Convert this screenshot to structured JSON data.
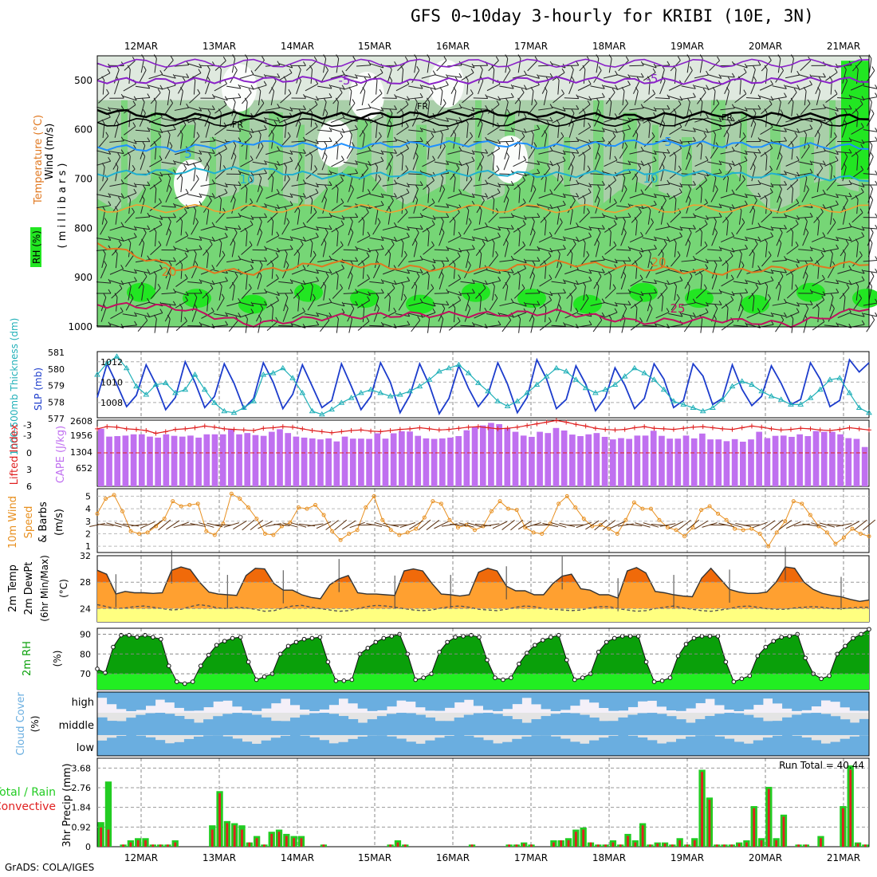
{
  "title": "GFS 0~10day 3-hourly for KRIBI (10E, 3N)",
  "footer": "GrADS: COLA/IGES",
  "dates": [
    "12MAR",
    "13MAR",
    "14MAR",
    "15MAR",
    "16MAR",
    "17MAR",
    "18MAR",
    "19MAR",
    "20MAR",
    "21MAR"
  ],
  "colors": {
    "rh_light": "#dfe9df",
    "rh_mid": "#a9cfa9",
    "rh_green": "#76d676",
    "rh_bright": "#22e622",
    "purple": "#8a22c8",
    "black": "#000000",
    "blue": "#1e90ff",
    "cyan": "#20b0d0",
    "orange": "#f0a030",
    "darkorange": "#e07820",
    "crimson": "#c01060",
    "slp": "#1c3ccc",
    "thick": "#20b0b8",
    "cape": "#c070f0",
    "li": "#e02020",
    "wind10": "#e89020",
    "temp_hot": "#f06a0a",
    "temp_warm": "#ffa030",
    "dew": "#ffff80",
    "rh_dark": "#0aa00a",
    "rh_lime": "#22ee22",
    "cloud": "#6aaee0",
    "rain_total": "#22cc22",
    "rain_conv": "#e02020"
  },
  "chart_data": [
    {
      "type": "heatmap",
      "name_labels": [
        "Wind (m/s)",
        "Temperature (°C)",
        "RH (%)",
        "( m i l l i b a r s )"
      ],
      "y_ticks": [
        "500",
        "600",
        "700",
        "800",
        "900",
        "1000"
      ],
      "contour_labels": [
        "-5",
        "-5",
        "FR",
        "FR",
        "FR",
        "5",
        "5",
        "10",
        "10",
        "20",
        "20",
        "25"
      ],
      "levels_mb": [
        450,
        1000
      ],
      "isotherms": [
        {
          "label": "-5",
          "values": [
            500,
            501,
            499,
            497,
            503,
            500,
            498,
            501,
            502,
            500,
            499
          ]
        },
        {
          "label": "FR",
          "values": [
            560,
            575,
            568,
            572,
            570,
            566,
            570,
            574,
            568,
            572,
            575
          ]
        },
        {
          "label": "5",
          "values": [
            635,
            640,
            625,
            635,
            630,
            628,
            635,
            625,
            630,
            632,
            635
          ]
        },
        {
          "label": "10",
          "values": [
            690,
            685,
            680,
            695,
            690,
            688,
            692,
            685,
            690,
            695,
            700
          ]
        },
        {
          "label": "20",
          "values": [
            830,
            880,
            890,
            870,
            880,
            885,
            870,
            880,
            890,
            880,
            870
          ]
        },
        {
          "label": "25",
          "values": [
            955,
            960,
            995,
            980,
            975,
            975,
            970,
            990,
            985,
            995,
            960
          ]
        }
      ]
    },
    {
      "type": "line",
      "ylabel_left": "1000-500mb Thickness (dm)",
      "ylabel_right": "SLP (mb)",
      "left_ticks": [
        "581",
        "580",
        "579",
        "578",
        "577"
      ],
      "right_ticks": [
        "1012",
        "1010",
        "1008"
      ],
      "series": [
        {
          "name": "SLP (mb)",
          "values": [
            1008.5,
            1011.8,
            1009.8,
            1007.6,
            1008.7,
            1011.7,
            1009.8,
            1007.3,
            1008.5,
            1012,
            1010,
            1007.5,
            1008.6,
            1011.8,
            1009.9,
            1007.4,
            1008.4,
            1011.9,
            1010,
            1007.4,
            1008.8,
            1011.7,
            1009.6,
            1007.5,
            1008.2,
            1011.8,
            1009.6,
            1007.3,
            1008.6,
            1011.9,
            1010,
            1007,
            1008.7,
            1011.8,
            1009.7,
            1006.9,
            1008.4,
            1011.6,
            1009.4,
            1007.6,
            1008.8,
            1011.9,
            1009.8,
            1007,
            1008.5,
            1012.2,
            1010.3,
            1007.4,
            1008.3,
            1011.6,
            1009.8,
            1007.2,
            1008.5,
            1011.4,
            1009.7,
            1007.4,
            1008.4,
            1011.8,
            1010.3,
            1007.5,
            1008.2,
            1011.8,
            1010.6,
            1007.8,
            1008.4,
            1011.7,
            1009.3,
            1007.7,
            1008.6,
            1011.6,
            1009.9,
            1007.8,
            1008.3,
            1011.9,
            1010.3,
            1007.6,
            1008.2,
            1012.2,
            1011.0,
            1011.9
          ]
        },
        {
          "name": "1000-500mb Thickness (dm)",
          "values": [
            579.6,
            580.3,
            580.7,
            580.0,
            578.9,
            578.4,
            579.0,
            579.1,
            578.5,
            578.7,
            579.6,
            578.7,
            577.9,
            577.4,
            577.3,
            577.6,
            578.0,
            579.6,
            579.7,
            580.0,
            579.4,
            578.5,
            577.4,
            577.2,
            577.5,
            577.9,
            578.2,
            578.5,
            578.7,
            578.5,
            578.3,
            578.4,
            578.6,
            578.9,
            579.3,
            579.8,
            580.0,
            580.2,
            579.7,
            579.1,
            578.6,
            578.0,
            577.7,
            578.0,
            578.5,
            579.0,
            579.5,
            580.0,
            579.8,
            579.3,
            578.8,
            578.5,
            578.7,
            579.0,
            579.5,
            580.0,
            579.7,
            579.3,
            578.7,
            578.0,
            577.8,
            577.6,
            577.4,
            577.6,
            578.1,
            578.9,
            579.2,
            579.0,
            578.6,
            578.3,
            578.1,
            577.8,
            577.8,
            578.2,
            578.7,
            579.3,
            579.4,
            578.5,
            577.6,
            577.3
          ]
        }
      ]
    },
    {
      "type": "bar",
      "ylabel_left": "Lifted Index",
      "ylabel_right": "CAPE (J/kg)",
      "left_ticks": [
        "-3",
        "-3",
        "0",
        "3",
        "6"
      ],
      "right_ticks": [
        "2608",
        "1956",
        "1304",
        "652"
      ],
      "cape": [
        2270,
        1960,
        1980,
        2000,
        2050,
        2050,
        1960,
        1920,
        2050,
        1990,
        1960,
        2000,
        1920,
        2050,
        2050,
        2050,
        2250,
        2050,
        2100,
        2020,
        1990,
        2150,
        2250,
        2100,
        1960,
        1920,
        1890,
        1850,
        1890,
        1770,
        1960,
        1880,
        1880,
        1870,
        2090,
        1880,
        2090,
        2170,
        2160,
        1990,
        1890,
        1870,
        1890,
        1920,
        1980,
        2210,
        2340,
        2400,
        2500,
        2450,
        2300,
        2150,
        2000,
        1950,
        2150,
        2100,
        2300,
        2200,
        2040,
        1980,
        2050,
        2100,
        1950,
        1850,
        1900,
        1870,
        2000,
        2000,
        2190,
        1990,
        1880,
        1880,
        2000,
        1890,
        2080,
        1850,
        1850,
        1780,
        1860,
        1760,
        1850,
        2150,
        1900,
        1990,
        2000,
        1950,
        2050,
        1980,
        2180,
        2150,
        2150,
        2050,
        1900,
        1870,
        1550
      ],
      "lifted_index": [
        -4.3,
        -4.7,
        -4.6,
        -4.3,
        -4.2,
        -4.0,
        -3.5,
        -3.8,
        -4.2,
        -4.3,
        -4.5,
        -4.8,
        -4.6,
        -4.3,
        -4.2,
        -4.1,
        -4.0,
        -4.4,
        -4.5,
        -4.7,
        -4.6,
        -4.3,
        -4.0,
        -3.8,
        -3.6,
        -3.8,
        -4.0,
        -4.1,
        -3.9,
        -3.8,
        -4.0,
        -4.2,
        -4.3,
        -4.5,
        -4.3,
        -4.1,
        -4.2,
        -4.4,
        -4.6,
        -4.7,
        -4.5,
        -4.3,
        -4.4,
        -4.6,
        -4.9,
        -5.2,
        -5.5,
        -5.8,
        -5.5,
        -5.1,
        -4.8,
        -4.4,
        -4.2,
        -4.1,
        -4.2,
        -4.5,
        -4.7,
        -4.4,
        -4.3,
        -4.2,
        -4.4,
        -4.6,
        -4.7,
        -4.5,
        -4.3,
        -4.2,
        -4.5,
        -4.8,
        -4.6,
        -4.3,
        -4.1,
        -4.2,
        -4.4,
        -4.3,
        -4.1,
        -4.0,
        -4.2,
        -4.5,
        -4.3,
        -4.1
      ]
    },
    {
      "type": "line",
      "ylabel": "10m Wind Speed & Barbs (m/s)",
      "ticks": [
        "5",
        "4",
        "3",
        "2",
        "1"
      ],
      "series": [
        {
          "name": "10m Wind Speed",
          "values": [
            3.6,
            4.8,
            5.1,
            3.8,
            2.2,
            2.0,
            2.1,
            2.6,
            3.2,
            4.6,
            4.2,
            4.3,
            4.4,
            2.2,
            1.9,
            2.8,
            5.2,
            4.8,
            4.1,
            3.2,
            2.0,
            1.9,
            2.6,
            2.9,
            4.1,
            4.0,
            4.3,
            3.5,
            2.2,
            1.5,
            2.0,
            2.3,
            4.1,
            5.0,
            3.1,
            2.3,
            1.9,
            2.1,
            2.4,
            3.3,
            4.6,
            4.4,
            3.1,
            2.5,
            2.7,
            2.3,
            2.6,
            3.8,
            4.6,
            4.0,
            3.9,
            2.5,
            2.1,
            2.0,
            2.8,
            4.4,
            5.0,
            4.1,
            3.2,
            2.6,
            2.7,
            2.4,
            2.0,
            3.1,
            4.5,
            4.0,
            4.0,
            3.1,
            2.5,
            2.3,
            1.8,
            2.5,
            3.9,
            4.2,
            3.6,
            3.1,
            2.4,
            2.3,
            2.4,
            2.0,
            1.0,
            2.1,
            3.0,
            4.6,
            4.4,
            3.5,
            2.6,
            2.1,
            1.2,
            1.7,
            2.4,
            2.0,
            1.8
          ]
        }
      ]
    },
    {
      "type": "area",
      "ylabel": "2m Temp 2m DewPt (6hr Min/Max) (°C)",
      "ticks": [
        "32",
        "28",
        "24"
      ],
      "temp": [
        29.8,
        29.2,
        26.2,
        26.6,
        26.4,
        26.4,
        26.3,
        26.4,
        29.8,
        30.3,
        29.9,
        28.0,
        26.5,
        26.2,
        26.1,
        26.0,
        29.0,
        30.1,
        30.0,
        27.8,
        26.8,
        26.8,
        26.1,
        25.7,
        25.5,
        27.6,
        28.5,
        29.0,
        26.4,
        26.2,
        26.2,
        26.1,
        26.0,
        29.7,
        30.0,
        29.7,
        27.8,
        26.2,
        26.1,
        25.9,
        26.1,
        29.5,
        30.1,
        29.7,
        27.4,
        26.7,
        26.7,
        26.1,
        26.1,
        27.8,
        28.9,
        29.2,
        27.0,
        26.8,
        26.1,
        26.1,
        25.6,
        29.7,
        30.2,
        29.4,
        26.6,
        26.4,
        26.1,
        25.9,
        25.8,
        28.6,
        30.1,
        28.5,
        26.9,
        26.5,
        26.3,
        26.3,
        26.5,
        28.0,
        30.3,
        30.1,
        28.0,
        26.9,
        26.3,
        26.0,
        25.8,
        25.4,
        25.1,
        25.3
      ],
      "dewpoint": [
        24.6,
        24.3,
        24.0,
        24.1,
        24.3,
        24.4,
        24.2,
        24.0,
        23.8,
        23.9,
        24.3,
        24.6,
        24.4,
        24.1,
        24.0,
        24.2,
        24.1,
        23.9,
        23.6,
        23.7,
        24.1,
        24.4,
        24.5,
        24.2,
        24.0,
        23.8,
        23.6,
        23.7,
        24.0,
        24.3,
        24.5,
        24.4,
        24.2,
        24.0,
        23.8,
        23.7,
        23.8,
        24.1,
        24.3,
        24.4,
        24.2,
        23.9,
        23.8,
        23.7,
        23.9,
        24.2,
        24.4,
        24.3,
        24.0,
        23.9,
        23.8,
        23.7,
        23.8,
        24.1,
        24.3,
        24.3,
        24.0,
        23.8,
        23.6,
        23.7,
        24.0,
        24.2,
        24.4,
        24.1,
        23.9,
        23.7,
        23.6,
        23.8,
        24.0,
        24.3,
        24.4,
        24.2,
        24.0,
        23.9,
        23.9,
        24.1,
        24.2,
        24.3,
        24.2,
        24.0,
        24.0,
        24.1,
        24.2,
        24.2
      ]
    },
    {
      "type": "area",
      "ylabel": "2m RH (%)",
      "ticks": [
        "90",
        "80",
        "70"
      ],
      "series": [
        {
          "name": "2m RH",
          "values": [
            72.5,
            70.5,
            83.5,
            89.5,
            89.5,
            88.5,
            89.5,
            88.5,
            87.5,
            74,
            66,
            65,
            66,
            74,
            79.5,
            84.5,
            86.5,
            88,
            88.5,
            76,
            67,
            68.5,
            70,
            80,
            84,
            86,
            87.5,
            88,
            88.5,
            76,
            66.5,
            66.5,
            67,
            80,
            83,
            86,
            88,
            89,
            90,
            80,
            67,
            68,
            70,
            81,
            86,
            88.5,
            89,
            89.5,
            88.5,
            77,
            68,
            67,
            68,
            75,
            80.5,
            84.5,
            87,
            88.5,
            89.5,
            77,
            67,
            68,
            70,
            81,
            86,
            88,
            89,
            89,
            89,
            76,
            66,
            66.5,
            68,
            79,
            85,
            88,
            89,
            89,
            89,
            76,
            66,
            67.5,
            69,
            79,
            83.5,
            86.5,
            88.5,
            89,
            90,
            78,
            70,
            67.5,
            69,
            80,
            84,
            88,
            90,
            92.5
          ]
        }
      ]
    },
    {
      "type": "heatmap",
      "ylabel": "Cloud Cover (%)",
      "rows": [
        "high",
        "middle",
        "low"
      ]
    },
    {
      "type": "bar",
      "ylabel": "3hr Precip (mm)",
      "legend": [
        "Total / Rain",
        "Convective"
      ],
      "annotation": "Run Total = 40.44",
      "ticks": [
        "3.68",
        "2.76",
        "1.84",
        "0.92",
        "0"
      ],
      "total": [
        1.15,
        3.05,
        0,
        0.1,
        0.3,
        0.4,
        0.4,
        0.1,
        0.1,
        0.1,
        0.3,
        0,
        0,
        0,
        0,
        1.0,
        2.6,
        1.2,
        1.1,
        1.0,
        0.2,
        0.5,
        0.1,
        0.7,
        0.8,
        0.6,
        0.5,
        0.5,
        0,
        0,
        0.1,
        0,
        0,
        0,
        0,
        0,
        0,
        0,
        0,
        0.1,
        0.3,
        0.1,
        0,
        0,
        0,
        0,
        0,
        0,
        0,
        0,
        0.1,
        0,
        0,
        0,
        0,
        0.1,
        0.1,
        0.2,
        0.1,
        0,
        0,
        0.3,
        0.3,
        0.4,
        0.8,
        0.9,
        0.2,
        0.1,
        0.1,
        0.3,
        0.1,
        0.6,
        0.3,
        1.1,
        0.1,
        0.2,
        0.2,
        0.1,
        0.4,
        0.1,
        0.4,
        3.6,
        2.3,
        0.1,
        0.1,
        0.1,
        0.2,
        0.3,
        1.9,
        0.4,
        2.8,
        0.4,
        1.5,
        0,
        0.1,
        0.1,
        0,
        0.5,
        0,
        0,
        1.9,
        3.8,
        0.2,
        0.1
      ],
      "convective": [
        0.9,
        0.8,
        0,
        0.1,
        0.2,
        0.3,
        0.3,
        0.1,
        0.1,
        0.1,
        0.2,
        0,
        0,
        0,
        0,
        0.8,
        2.5,
        1.1,
        1.0,
        0.8,
        0.2,
        0.4,
        0.1,
        0.6,
        0.7,
        0.5,
        0.4,
        0.4,
        0,
        0,
        0.1,
        0,
        0,
        0,
        0,
        0,
        0,
        0,
        0,
        0.1,
        0.2,
        0.1,
        0,
        0,
        0,
        0,
        0,
        0,
        0,
        0,
        0.1,
        0,
        0,
        0,
        0,
        0.1,
        0.1,
        0.15,
        0.1,
        0,
        0,
        0.2,
        0.3,
        0.3,
        0.7,
        0.8,
        0.2,
        0.1,
        0.1,
        0.2,
        0.1,
        0.5,
        0.2,
        1.0,
        0.1,
        0.15,
        0.15,
        0.1,
        0.3,
        0.1,
        0.3,
        3.5,
        2.2,
        0.1,
        0.1,
        0.1,
        0.15,
        0.2,
        1.8,
        0.3,
        2.7,
        0.3,
        1.4,
        0,
        0.1,
        0.1,
        0,
        0.4,
        0,
        0,
        1.8,
        3.6,
        0.15,
        0.1
      ]
    }
  ]
}
